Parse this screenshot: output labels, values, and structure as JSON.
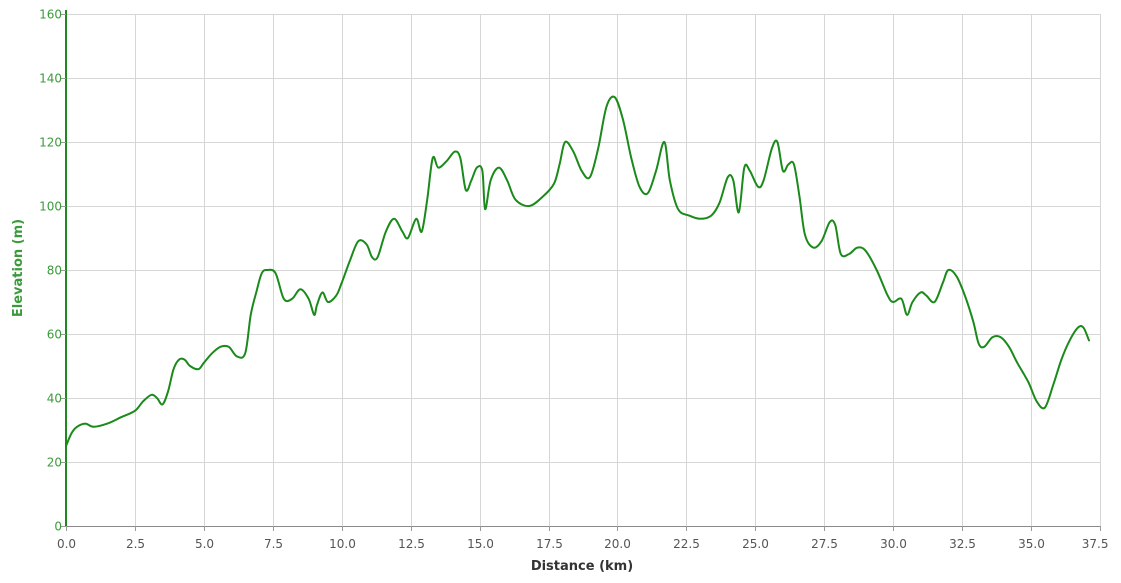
{
  "chart_data": {
    "type": "line",
    "xlabel": "Distance (km)",
    "ylabel": "Elevation (m)",
    "xlim": [
      0,
      37.5
    ],
    "ylim": [
      0,
      160
    ],
    "xticks": [
      "0.0",
      "2.5",
      "5.0",
      "7.5",
      "10.0",
      "12.5",
      "15.0",
      "17.5",
      "20.0",
      "22.5",
      "25.0",
      "27.5",
      "30.0",
      "32.5",
      "35.0",
      "37.5"
    ],
    "yticks": [
      "0",
      "20",
      "40",
      "60",
      "80",
      "100",
      "120",
      "140",
      "160"
    ],
    "grid": true,
    "colors": {
      "series": "#1a8a1a",
      "y_axis": "#1e8a1e",
      "y_labels": "#3c9a3c",
      "grid": "#d6d6d6"
    },
    "series": [
      {
        "x": [
          0.0,
          0.2,
          0.4,
          0.7,
          1.0,
          1.5,
          2.0,
          2.5,
          2.8,
          3.1,
          3.3,
          3.5,
          3.7,
          3.9,
          4.1,
          4.3,
          4.5,
          4.8,
          5.0,
          5.3,
          5.6,
          5.9,
          6.2,
          6.5,
          6.7,
          6.9,
          7.1,
          7.3,
          7.6,
          7.9,
          8.2,
          8.5,
          8.8,
          9.0,
          9.1,
          9.3,
          9.5,
          9.8,
          10.0,
          10.3,
          10.6,
          10.9,
          11.1,
          11.3,
          11.6,
          11.9,
          12.2,
          12.4,
          12.7,
          12.9,
          13.1,
          13.3,
          13.5,
          13.8,
          14.1,
          14.3,
          14.5,
          14.7,
          14.9,
          15.1,
          15.2,
          15.4,
          15.7,
          16.0,
          16.3,
          16.8,
          17.3,
          17.7,
          17.9,
          18.1,
          18.4,
          18.7,
          19.0,
          19.3,
          19.6,
          19.9,
          20.2,
          20.5,
          20.8,
          21.1,
          21.4,
          21.7,
          21.9,
          22.2,
          22.6,
          23.0,
          23.4,
          23.7,
          24.0,
          24.2,
          24.4,
          24.6,
          24.8,
          25.1,
          25.3,
          25.6,
          25.8,
          26.0,
          26.2,
          26.4,
          26.6,
          26.8,
          27.1,
          27.4,
          27.7,
          27.9,
          28.1,
          28.4,
          28.7,
          29.0,
          29.4,
          29.8,
          30.0,
          30.3,
          30.5,
          30.7,
          31.0,
          31.2,
          31.5,
          31.8,
          32.0,
          32.3,
          32.6,
          32.9,
          33.1,
          33.3,
          33.6,
          33.9,
          34.2,
          34.5,
          34.9,
          35.2,
          35.5,
          35.8,
          36.1,
          36.4,
          36.7,
          36.9,
          37.1
        ],
        "y": [
          25,
          29,
          31,
          32,
          31,
          32,
          34,
          36,
          39,
          41,
          40,
          38,
          42,
          49,
          52,
          52,
          50,
          49,
          51,
          54,
          56,
          56,
          53,
          54,
          66,
          73,
          79,
          80,
          79,
          71,
          71,
          74,
          71,
          66,
          69,
          73,
          70,
          72,
          76,
          83,
          89,
          88,
          84,
          84,
          92,
          96,
          92,
          90,
          96,
          92,
          102,
          115,
          112,
          114,
          117,
          115,
          105,
          108,
          112,
          111,
          99,
          108,
          112,
          108,
          102,
          100,
          103,
          107,
          113,
          120,
          117,
          111,
          109,
          118,
          131,
          134,
          127,
          115,
          106,
          104,
          111,
          120,
          108,
          99,
          97,
          96,
          97,
          101,
          109,
          108,
          98,
          112,
          111,
          106,
          108,
          118,
          120,
          111,
          113,
          113,
          103,
          91,
          87,
          89,
          95,
          94,
          85,
          85,
          87,
          86,
          80,
          72,
          70,
          71,
          66,
          70,
          73,
          72,
          70,
          76,
          80,
          78,
          72,
          64,
          57,
          56,
          59,
          59,
          56,
          51,
          45,
          39,
          37,
          44,
          52,
          58,
          62,
          62,
          58
        ]
      }
    ]
  }
}
